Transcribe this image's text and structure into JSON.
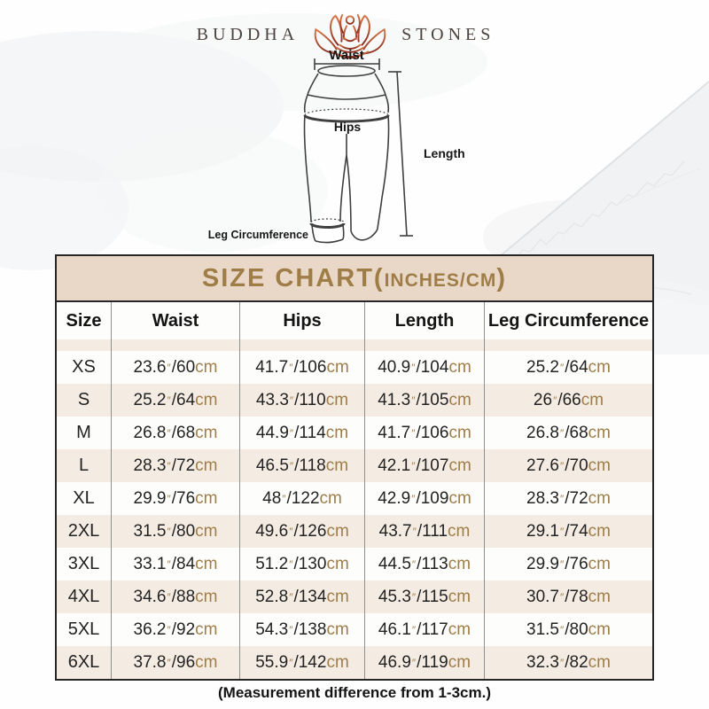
{
  "brand": {
    "name_left": "BUDDHA",
    "name_right": "STONES",
    "icon": "lotus-meditation-icon"
  },
  "diagram": {
    "labels": {
      "waist": "Waist",
      "hips": "Hips",
      "length": "Length",
      "leg": "Leg Circumference"
    }
  },
  "units": {
    "inch_symbol": "″",
    "cm_label": "cm",
    "separator": "/"
  },
  "size_chart": {
    "title_prefix": "SIZE CHART(",
    "title_unit": "INCHES/CM",
    "title_suffix": ")",
    "columns": [
      "Size",
      "Waist",
      "Hips",
      "Length",
      "Leg Circumference"
    ],
    "rows": [
      {
        "size": "XS",
        "waist": {
          "in": "23.6",
          "cm": "60"
        },
        "hips": {
          "in": "41.7",
          "cm": "106"
        },
        "length": {
          "in": "40.9",
          "cm": "104"
        },
        "leg": {
          "in": "25.2",
          "cm": "64"
        }
      },
      {
        "size": "S",
        "waist": {
          "in": "25.2",
          "cm": "64"
        },
        "hips": {
          "in": "43.3",
          "cm": "110"
        },
        "length": {
          "in": "41.3",
          "cm": "105"
        },
        "leg": {
          "in": "26",
          "cm": "66"
        }
      },
      {
        "size": "M",
        "waist": {
          "in": "26.8",
          "cm": "68"
        },
        "hips": {
          "in": "44.9",
          "cm": "114"
        },
        "length": {
          "in": "41.7",
          "cm": "106"
        },
        "leg": {
          "in": "26.8",
          "cm": "68"
        }
      },
      {
        "size": "L",
        "waist": {
          "in": "28.3",
          "cm": "72"
        },
        "hips": {
          "in": "46.5",
          "cm": "118"
        },
        "length": {
          "in": "42.1",
          "cm": "107"
        },
        "leg": {
          "in": "27.6",
          "cm": "70"
        }
      },
      {
        "size": "XL",
        "waist": {
          "in": "29.9",
          "cm": "76"
        },
        "hips": {
          "in": "48",
          "cm": "122"
        },
        "length": {
          "in": "42.9",
          "cm": "109"
        },
        "leg": {
          "in": "28.3",
          "cm": "72"
        }
      },
      {
        "size": "2XL",
        "waist": {
          "in": "31.5",
          "cm": "80"
        },
        "hips": {
          "in": "49.6",
          "cm": "126"
        },
        "length": {
          "in": "43.7",
          "cm": "111"
        },
        "leg": {
          "in": "29.1",
          "cm": "74"
        }
      },
      {
        "size": "3XL",
        "waist": {
          "in": "33.1",
          "cm": "84"
        },
        "hips": {
          "in": "51.2",
          "cm": "130"
        },
        "length": {
          "in": "44.5",
          "cm": "113"
        },
        "leg": {
          "in": "29.9",
          "cm": "76"
        }
      },
      {
        "size": "4XL",
        "waist": {
          "in": "34.6",
          "cm": "88"
        },
        "hips": {
          "in": "52.8",
          "cm": "134"
        },
        "length": {
          "in": "45.3",
          "cm": "115"
        },
        "leg": {
          "in": "30.7",
          "cm": "78"
        }
      },
      {
        "size": "5XL",
        "waist": {
          "in": "36.2",
          "cm": "92"
        },
        "hips": {
          "in": "54.3",
          "cm": "138"
        },
        "length": {
          "in": "46.1",
          "cm": "117"
        },
        "leg": {
          "in": "31.5",
          "cm": "80"
        }
      },
      {
        "size": "6XL",
        "waist": {
          "in": "37.8",
          "cm": "96"
        },
        "hips": {
          "in": "55.9",
          "cm": "142"
        },
        "length": {
          "in": "46.9",
          "cm": "119"
        },
        "leg": {
          "in": "32.3",
          "cm": "82"
        }
      }
    ],
    "footnote": "(Measurement difference from 1-3cm.)"
  },
  "colors": {
    "accent_gold": "#9f7d47",
    "band_bg": "#e9d7c8",
    "row_beige": "#f4ece3",
    "border_dark": "#262626",
    "text_dark": "#222222",
    "logo_red_gradient_top": "#d6784a",
    "logo_red_gradient_bottom": "#8a2f1f"
  }
}
